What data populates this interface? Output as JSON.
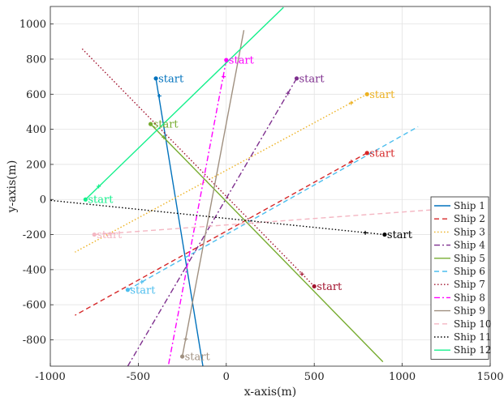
{
  "chart_data": {
    "type": "line",
    "title": "",
    "xlabel": "x-axis(m)",
    "ylabel": "y-axis(m)",
    "xlim": [
      -1000,
      1500
    ],
    "ylim": [
      -950,
      1100
    ],
    "xticks": [
      -1000,
      -500,
      0,
      500,
      1000,
      1500
    ],
    "yticks": [
      -800,
      -600,
      -400,
      -200,
      0,
      200,
      400,
      600,
      800,
      1000
    ],
    "grid": true,
    "legend_position": "bottom-right",
    "start_label": "start",
    "series": [
      {
        "name": "Ship 1",
        "color": "#0072BD",
        "dash": "solid",
        "x": [
          -400,
          -133
        ],
        "y": [
          690,
          -950
        ],
        "start": [
          -400,
          690
        ],
        "marker": [
          -380,
          590
        ]
      },
      {
        "name": "Ship 2",
        "color": "#D62728",
        "dash": "dashed",
        "x": [
          800,
          -860
        ],
        "y": [
          265,
          -660
        ],
        "start": [
          800,
          265
        ],
        "marker": [
          710,
          215
        ]
      },
      {
        "name": "Ship 3",
        "color": "#EDB120",
        "dash": "dotted",
        "x": [
          800,
          -860
        ],
        "y": [
          600,
          -300
        ],
        "start": [
          800,
          600
        ],
        "marker": [
          710,
          550
        ]
      },
      {
        "name": "Ship 4",
        "color": "#7E2F8E",
        "dash": "dashdot",
        "x": [
          400,
          -560
        ],
        "y": [
          690,
          -950
        ],
        "start": [
          400,
          690
        ],
        "marker": [
          350,
          605
        ]
      },
      {
        "name": "Ship 5",
        "color": "#77AC30",
        "dash": "solid",
        "x": [
          -430,
          890
        ],
        "y": [
          430,
          -925
        ],
        "start": [
          -430,
          430
        ],
        "marker": [
          -355,
          355
        ]
      },
      {
        "name": "Ship 6",
        "color": "#4DBEEE",
        "dash": "dashed",
        "x": [
          -560,
          1090
        ],
        "y": [
          -515,
          415
        ],
        "start": [
          -560,
          -515
        ],
        "marker": [
          -480,
          -470
        ]
      },
      {
        "name": "Ship 7",
        "color": "#A2142F",
        "dash": "dotted",
        "x": [
          500,
          -820
        ],
        "y": [
          -495,
          860
        ],
        "start": [
          500,
          -495
        ],
        "marker": [
          430,
          -425
        ]
      },
      {
        "name": "Ship 8",
        "color": "#FF00FF",
        "dash": "dashdot",
        "x": [
          0,
          -330
        ],
        "y": [
          795,
          -950
        ],
        "start": [
          0,
          795
        ],
        "marker": [
          -15,
          700
        ]
      },
      {
        "name": "Ship 9",
        "color": "#A09080",
        "dash": "solid",
        "x": [
          -250,
          100
        ],
        "y": [
          -895,
          965
        ],
        "start": [
          -250,
          -895
        ],
        "marker": [
          -230,
          -795
        ]
      },
      {
        "name": "Ship 10",
        "color": "#F4B6C2",
        "dash": "dashed",
        "x": [
          -750,
          1160
        ],
        "y": [
          -200,
          -60
        ],
        "start": [
          -750,
          -200
        ],
        "marker": [
          -660,
          -195
        ]
      },
      {
        "name": "Ship 11",
        "color": "#000000",
        "dash": "dotted",
        "x": [
          900,
          -1000
        ],
        "y": [
          -200,
          -5
        ],
        "start": [
          900,
          -200
        ],
        "marker": [
          790,
          -190
        ]
      },
      {
        "name": "Ship 12",
        "color": "#14F08C",
        "dash": "solid",
        "x": [
          -800,
          325
        ],
        "y": [
          0,
          1095
        ],
        "start": [
          -800,
          0
        ],
        "marker": [
          -725,
          75
        ]
      }
    ]
  }
}
